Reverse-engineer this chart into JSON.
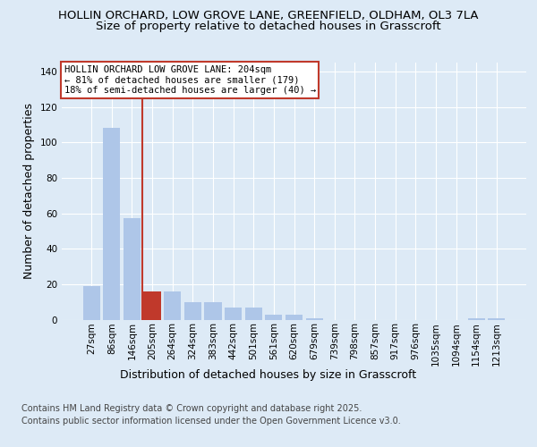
{
  "title_line1": "HOLLIN ORCHARD, LOW GROVE LANE, GREENFIELD, OLDHAM, OL3 7LA",
  "title_line2": "Size of property relative to detached houses in Grasscroft",
  "xlabel": "Distribution of detached houses by size in Grasscroft",
  "ylabel": "Number of detached properties",
  "categories": [
    "27sqm",
    "86sqm",
    "146sqm",
    "205sqm",
    "264sqm",
    "324sqm",
    "383sqm",
    "442sqm",
    "501sqm",
    "561sqm",
    "620sqm",
    "679sqm",
    "739sqm",
    "798sqm",
    "857sqm",
    "917sqm",
    "976sqm",
    "1035sqm",
    "1094sqm",
    "1154sqm",
    "1213sqm"
  ],
  "values": [
    19,
    108,
    57,
    16,
    16,
    10,
    10,
    7,
    7,
    3,
    3,
    1,
    0,
    0,
    0,
    0,
    0,
    0,
    0,
    1,
    1
  ],
  "bar_color": "#aec6e8",
  "highlight_bar_index": 3,
  "highlight_bar_color": "#c0392b",
  "vline_color": "#c0392b",
  "annotation_text": "HOLLIN ORCHARD LOW GROVE LANE: 204sqm\n← 81% of detached houses are smaller (179)\n18% of semi-detached houses are larger (40) →",
  "annotation_box_color": "#c0392b",
  "ylim": [
    0,
    145
  ],
  "yticks": [
    0,
    20,
    40,
    60,
    80,
    100,
    120,
    140
  ],
  "footer_line1": "Contains HM Land Registry data © Crown copyright and database right 2025.",
  "footer_line2": "Contains public sector information licensed under the Open Government Licence v3.0.",
  "background_color": "#ddeaf6",
  "plot_bg_color": "#ddeaf6",
  "grid_color": "#ffffff",
  "title_fontsize": 9.5,
  "subtitle_fontsize": 9.5,
  "axis_label_fontsize": 9,
  "tick_fontsize": 7.5,
  "footer_fontsize": 7,
  "annotation_fontsize": 7.5
}
